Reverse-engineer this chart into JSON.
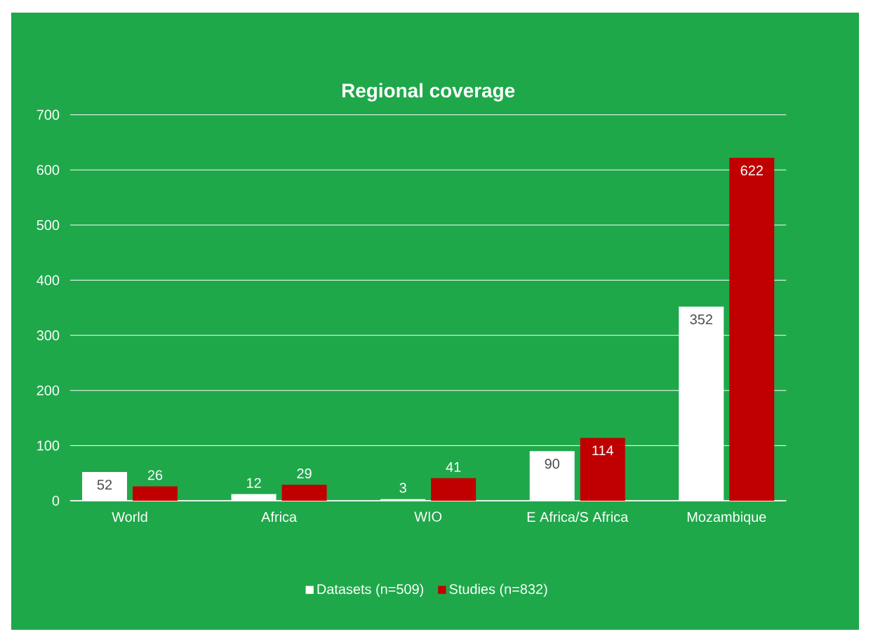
{
  "chart_data": {
    "type": "bar",
    "title": "Regional coverage",
    "categories": [
      "World",
      "Africa",
      "WIO",
      "E Africa/S Africa",
      "Mozambique"
    ],
    "series": [
      {
        "name": "Datasets (n=509)",
        "color": "#ffffff",
        "values": [
          52,
          12,
          3,
          90,
          352
        ]
      },
      {
        "name": "Studies (n=832)",
        "color": "#c00000",
        "values": [
          26,
          29,
          41,
          114,
          622
        ]
      }
    ],
    "ylim": [
      0,
      700
    ],
    "yticks": [
      0,
      100,
      200,
      300,
      400,
      500,
      600,
      700
    ],
    "grid": "y",
    "legend": "bottom",
    "data_labels": true
  }
}
